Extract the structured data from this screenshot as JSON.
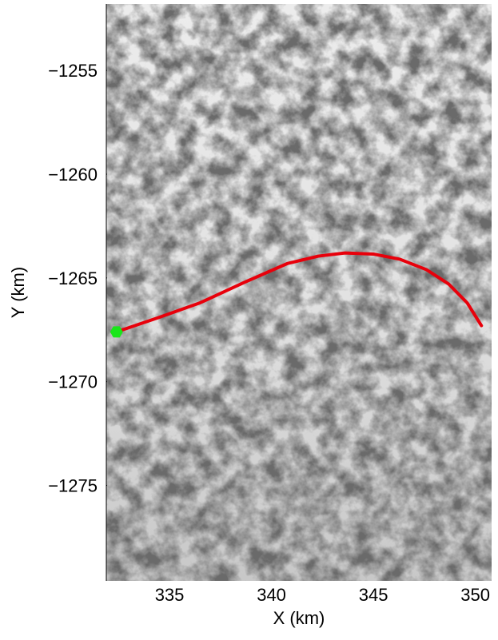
{
  "chart_data": {
    "type": "line",
    "x_label": "X (km)",
    "y_label": "Y (km)",
    "x": [
      332.4,
      334.5,
      336.5,
      338.7,
      340.8,
      342.3,
      343.6,
      345.0,
      346.3,
      347.6,
      348.7,
      349.6,
      350.3
    ],
    "series": [
      {
        "color": "#e8000b",
        "values": [
          -1267.6,
          -1266.9,
          -1266.2,
          -1265.2,
          -1264.3,
          -1263.95,
          -1263.8,
          -1263.85,
          -1264.1,
          -1264.6,
          -1265.3,
          -1266.2,
          -1267.3
        ]
      }
    ],
    "start_marker": {
      "x": 332.4,
      "y": -1267.6,
      "color": "#19e619"
    },
    "xlim": [
      331.9,
      350.8
    ],
    "ylim": [
      -1279.6,
      -1251.8
    ],
    "xticks": [
      335,
      340,
      345,
      350
    ],
    "yticks": [
      {
        "value": -1255,
        "label": "−1255"
      },
      {
        "value": -1260,
        "label": "−1260"
      },
      {
        "value": -1265,
        "label": "−1265"
      },
      {
        "value": -1270,
        "label": "−1270"
      },
      {
        "value": -1275,
        "label": "−1275"
      }
    ]
  }
}
